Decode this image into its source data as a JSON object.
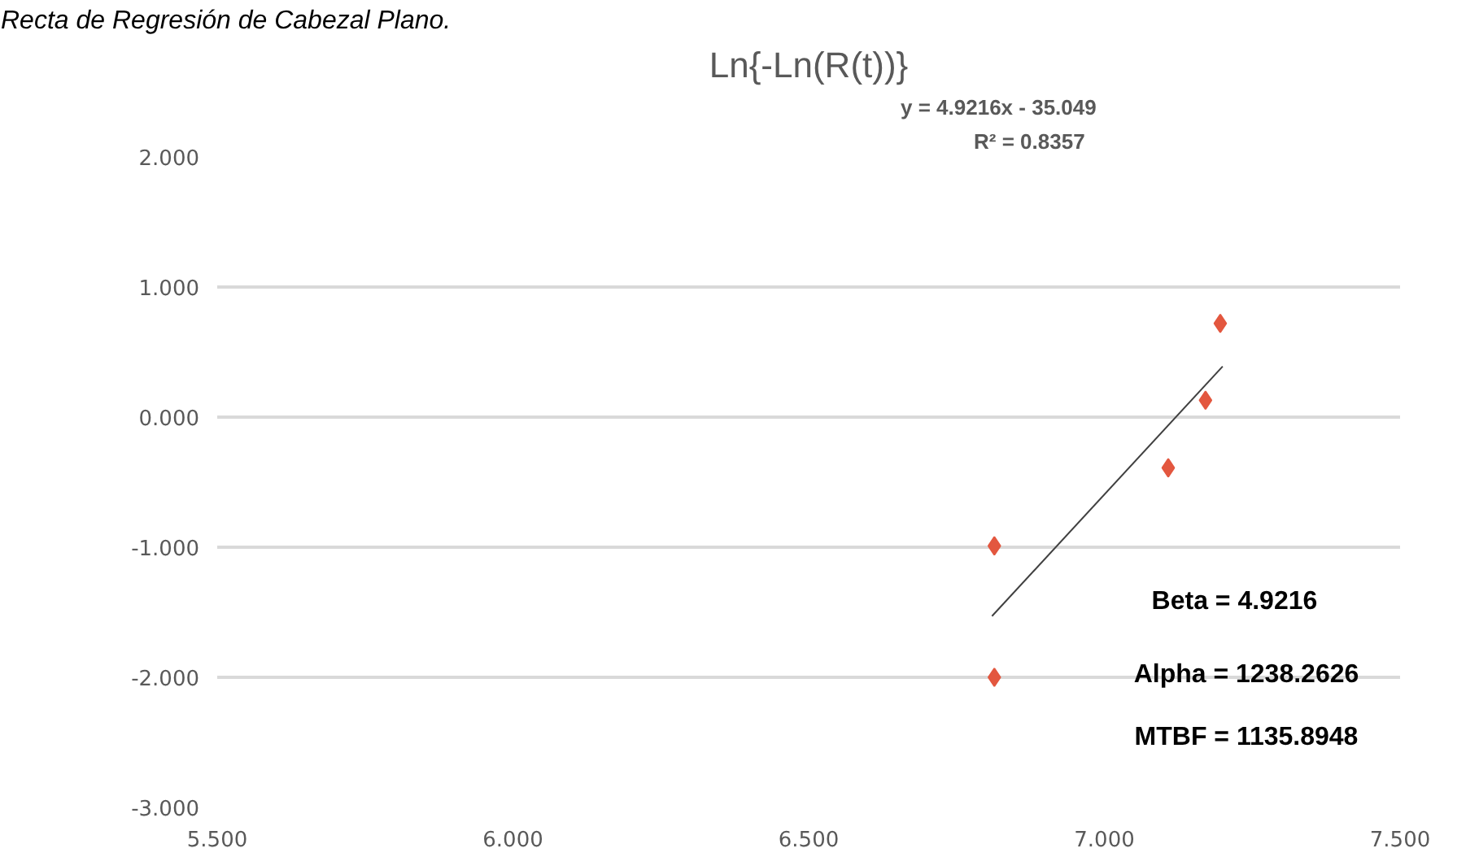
{
  "chart_data": {
    "type": "scatter",
    "title": "Ln{-Ln(R(t))}",
    "annotations": [
      "Recta de Regresión de Cabezal Plano.",
      "y = 4.9216x - 35.049",
      "R² = 0.8357",
      "Beta = 4.9216",
      "Alpha = 1238.2626",
      "MTBF = 1135.8948"
    ],
    "series": [
      {
        "color": "#e3573f",
        "x": [
          6.814,
          6.814,
          7.108,
          7.171,
          7.196
        ],
        "values": [
          -2.0,
          -0.99,
          -0.39,
          0.13,
          0.72
        ]
      },
      {
        "type": "line",
        "marker": "none",
        "color": "#404040",
        "x": [
          6.81,
          7.2
        ],
        "values": [
          -1.53,
          0.39
        ]
      }
    ],
    "xlim": [
      5.5,
      7.5
    ],
    "ylim": [
      -3,
      2
    ],
    "xticks": [
      {
        "value": 5.5,
        "label": "5.500"
      },
      {
        "value": 6.0,
        "label": "6.000"
      },
      {
        "value": 6.5,
        "label": "6.500"
      },
      {
        "value": 7.0,
        "label": "7.000"
      },
      {
        "value": 7.5,
        "label": "7.500"
      }
    ],
    "yticks": [
      {
        "value": -3,
        "label": "-3.000"
      },
      {
        "value": -2,
        "label": "-2.000"
      },
      {
        "value": -1,
        "label": "-1.000"
      },
      {
        "value": 0,
        "label": "0.000"
      },
      {
        "value": 1,
        "label": "1.000"
      },
      {
        "value": 2,
        "label": "2.000"
      }
    ],
    "grid": "y",
    "marker": "diamond"
  }
}
